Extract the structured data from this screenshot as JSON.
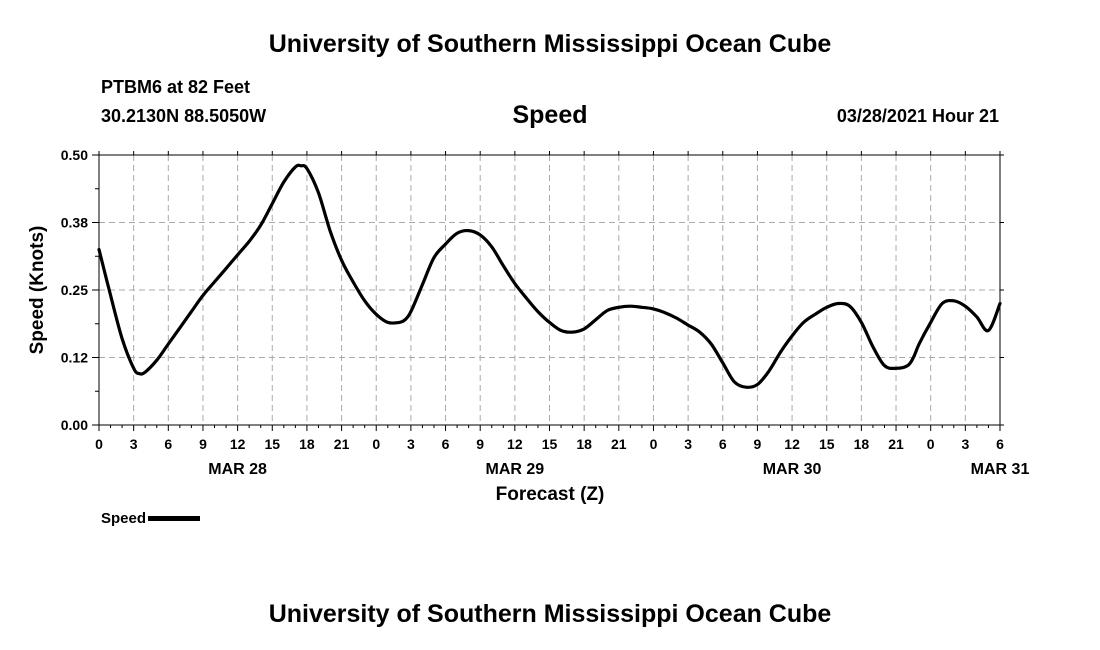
{
  "header": {
    "title": "University of Southern Mississippi Ocean Cube",
    "station": "PTBM6 at 82 Feet",
    "coords": "30.2130N  88.5050W",
    "datetime": "03/28/2021 Hour 21"
  },
  "footer": {
    "title": "University of Southern Mississippi Ocean Cube"
  },
  "chart_data": {
    "type": "line",
    "title": "Speed",
    "xlabel": "Forecast (Z)",
    "ylabel": "Speed (Knots)",
    "ylim": [
      0,
      0.5
    ],
    "yticks": [
      0,
      0.125,
      0.25,
      0.375,
      0.5
    ],
    "ytick_labels": [
      "0.00",
      "0.12",
      "0.25",
      "0.38",
      "0.50"
    ],
    "xlim": [
      0,
      78
    ],
    "xtick_hours": [
      0,
      3,
      6,
      9,
      12,
      15,
      18,
      21,
      24,
      27,
      30,
      33,
      36,
      39,
      42,
      45,
      48,
      51,
      54,
      57,
      60,
      63,
      66,
      69,
      72,
      75,
      78
    ],
    "xtick_labels": [
      "0",
      "3",
      "6",
      "9",
      "12",
      "15",
      "18",
      "21",
      "0",
      "3",
      "6",
      "9",
      "12",
      "15",
      "18",
      "21",
      "0",
      "3",
      "6",
      "9",
      "12",
      "15",
      "18",
      "21",
      "0",
      "3",
      "6"
    ],
    "date_labels": [
      {
        "hour": 12,
        "label": "MAR 28"
      },
      {
        "hour": 36,
        "label": "MAR 29"
      },
      {
        "hour": 60,
        "label": "MAR 30"
      },
      {
        "hour": 78,
        "label": "MAR 31"
      }
    ],
    "grid": true,
    "legend_position": "bottom-left",
    "series": [
      {
        "name": "Speed",
        "color": "#000000",
        "x": [
          0,
          1,
          2,
          3,
          3.5,
          4,
          5,
          6,
          7,
          8,
          9,
          10,
          11,
          12,
          13,
          14,
          15,
          16,
          17,
          17.5,
          18,
          19,
          20,
          21,
          22,
          23,
          24,
          25,
          26,
          26.5,
          27,
          28,
          29,
          30,
          31,
          32,
          33,
          34,
          35,
          36,
          37,
          38,
          39,
          40,
          41,
          42,
          43,
          44,
          45,
          46,
          47,
          48,
          49,
          50,
          51,
          52,
          53,
          54,
          55,
          56,
          57,
          58,
          59,
          60,
          61,
          62,
          63,
          64,
          65,
          66,
          67,
          68,
          69,
          70,
          70.5,
          71,
          72,
          73,
          74,
          75,
          76,
          77,
          78
        ],
        "values": [
          0.325,
          0.24,
          0.16,
          0.105,
          0.095,
          0.098,
          0.12,
          0.15,
          0.18,
          0.21,
          0.24,
          0.265,
          0.29,
          0.315,
          0.34,
          0.37,
          0.41,
          0.45,
          0.478,
          0.48,
          0.475,
          0.43,
          0.36,
          0.305,
          0.265,
          0.23,
          0.205,
          0.19,
          0.19,
          0.195,
          0.21,
          0.26,
          0.31,
          0.335,
          0.355,
          0.36,
          0.352,
          0.33,
          0.295,
          0.262,
          0.235,
          0.21,
          0.19,
          0.175,
          0.172,
          0.178,
          0.195,
          0.212,
          0.218,
          0.22,
          0.218,
          0.215,
          0.208,
          0.198,
          0.185,
          0.172,
          0.15,
          0.115,
          0.08,
          0.07,
          0.075,
          0.1,
          0.135,
          0.165,
          0.19,
          0.205,
          0.218,
          0.225,
          0.22,
          0.19,
          0.145,
          0.11,
          0.105,
          0.11,
          0.125,
          0.15,
          0.19,
          0.225,
          0.23,
          0.22,
          0.2,
          0.175,
          0.225
        ]
      }
    ]
  }
}
